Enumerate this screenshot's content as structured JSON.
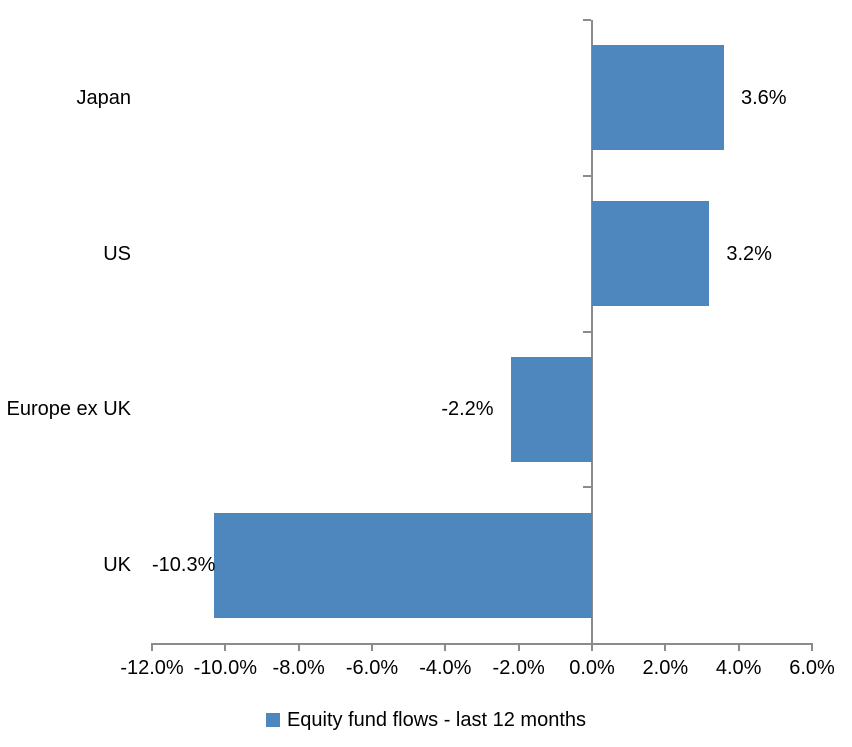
{
  "chart_data": {
    "type": "bar",
    "orientation": "horizontal",
    "title": "",
    "categories": [
      "Japan",
      "US",
      "Europe ex UK",
      "UK"
    ],
    "series": [
      {
        "name": "Equity fund flows - last 12 months",
        "values": [
          3.6,
          3.2,
          -2.2,
          -10.3
        ],
        "data_labels": [
          "3.6%",
          "3.2%",
          "-2.2%",
          "-10.3%"
        ]
      }
    ],
    "xlabel": "",
    "ylabel": "",
    "xlim": [
      -12,
      6
    ],
    "x_ticks": [
      {
        "value": -12,
        "label": "-12.0%"
      },
      {
        "value": -10,
        "label": "-10.0%"
      },
      {
        "value": -8,
        "label": "-8.0%"
      },
      {
        "value": -6,
        "label": "-6.0%"
      },
      {
        "value": -4,
        "label": "-4.0%"
      },
      {
        "value": -2,
        "label": "-2.0%"
      },
      {
        "value": 0,
        "label": "0.0%"
      },
      {
        "value": 2,
        "label": "2.0%"
      },
      {
        "value": 4,
        "label": "4.0%"
      },
      {
        "value": 6,
        "label": "6.0%"
      }
    ],
    "grid": false,
    "legend_position": "bottom",
    "bar_color": "#4E86BE",
    "axis_color": "#8C8C8C",
    "text_color": "#000000"
  },
  "legend": {
    "label": "Equity fund flows - last 12 months",
    "swatch_color": "#4E86BE"
  }
}
